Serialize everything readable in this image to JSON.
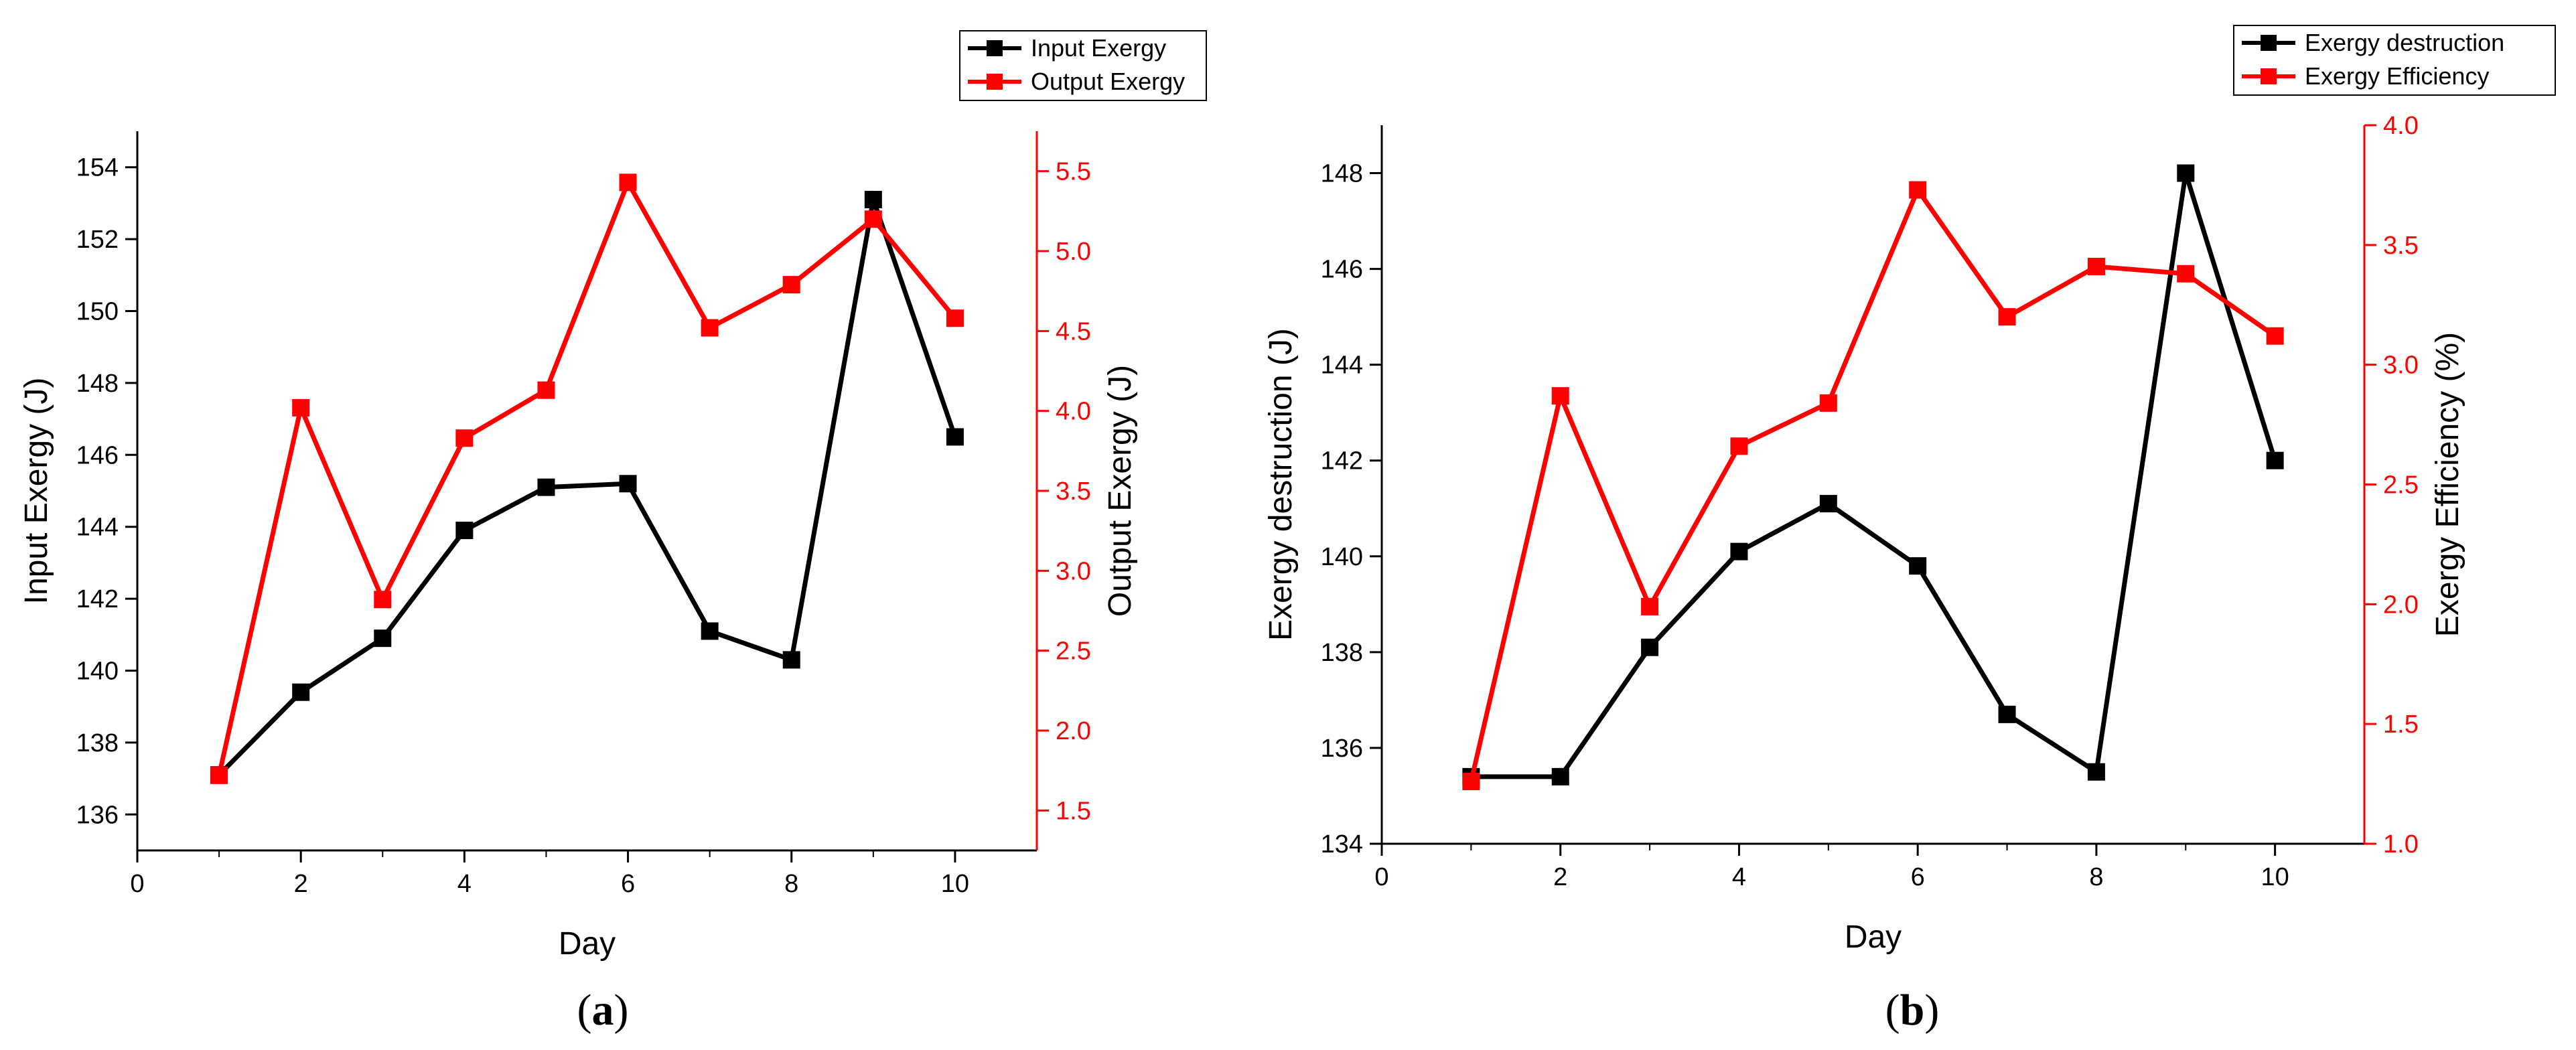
{
  "colors": {
    "primary": "#000000",
    "secondary": "#ff0000"
  },
  "chart_data": [
    {
      "type": "line",
      "panel_label": "a",
      "xlabel": "Day",
      "ylabel_left": "Input Exergy (J)",
      "ylabel_right": "Output Exergy (J)",
      "xlim": [
        0,
        11
      ],
      "ylim_left": [
        135,
        155
      ],
      "ylim_right": [
        1.25,
        5.75
      ],
      "xticks": [
        0,
        2,
        4,
        6,
        8,
        10
      ],
      "yticks_left": [
        136,
        138,
        140,
        142,
        144,
        146,
        148,
        150,
        152,
        154
      ],
      "yticks_right": [
        1.5,
        2.0,
        2.5,
        3.0,
        3.5,
        4.0,
        4.5,
        5.0,
        5.5
      ],
      "x": [
        1,
        2,
        3,
        4,
        5,
        6,
        7,
        8,
        9,
        10
      ],
      "series": [
        {
          "name": "Input Exergy",
          "axis": "left",
          "color": "#000000",
          "values": [
            137.1,
            139.4,
            140.9,
            143.9,
            145.1,
            145.2,
            141.1,
            140.3,
            153.1,
            146.5
          ]
        },
        {
          "name": "Output Exergy",
          "axis": "right",
          "color": "#ff0000",
          "values": [
            1.72,
            4.02,
            2.82,
            3.83,
            4.13,
            5.43,
            4.52,
            4.79,
            5.2,
            4.58
          ]
        }
      ]
    },
    {
      "type": "line",
      "panel_label": "b",
      "xlabel": "Day",
      "ylabel_left": "Exergy destruction (J)",
      "ylabel_right": "Exergy Efficiency (%)",
      "xlim": [
        0,
        11
      ],
      "ylim_left": [
        134,
        149
      ],
      "ylim_right": [
        1.0,
        4.0
      ],
      "xticks": [
        0,
        2,
        4,
        6,
        8,
        10
      ],
      "yticks_left": [
        134,
        136,
        138,
        140,
        142,
        144,
        146,
        148
      ],
      "yticks_right": [
        1.0,
        1.5,
        2.0,
        2.5,
        3.0,
        3.5,
        4.0
      ],
      "x": [
        1,
        2,
        3,
        4,
        5,
        6,
        7,
        8,
        9,
        10
      ],
      "series": [
        {
          "name": "Exergy destruction",
          "axis": "left",
          "color": "#000000",
          "values": [
            135.4,
            135.4,
            138.1,
            140.1,
            141.1,
            139.8,
            136.7,
            135.5,
            148.0,
            142.0
          ]
        },
        {
          "name": "Exergy Efficiency",
          "axis": "right",
          "color": "#ff0000",
          "values": [
            1.26,
            2.87,
            1.99,
            2.66,
            2.84,
            3.73,
            3.2,
            3.41,
            3.38,
            3.12
          ]
        }
      ]
    }
  ]
}
